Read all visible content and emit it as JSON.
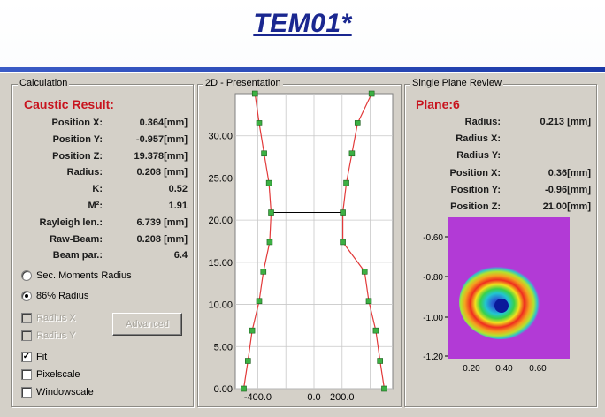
{
  "slide_title": "TEM01*",
  "calculation": {
    "group_label": "Calculation",
    "heading": "Caustic Result:",
    "rows": [
      {
        "label": "Position X:",
        "value": "0.364[mm]"
      },
      {
        "label": "Position Y:",
        "value": "-0.957[mm]"
      },
      {
        "label": "Position Z:",
        "value": "19.378[mm]"
      },
      {
        "label": "Radius:",
        "value": "0.208 [mm]"
      },
      {
        "label": "K:",
        "value": "0.52"
      },
      {
        "label": "M²:",
        "value": "1.91"
      },
      {
        "label": "Rayleigh len.:",
        "value": "6.739 [mm]"
      },
      {
        "label": "Raw-Beam:",
        "value": "0.208 [mm]"
      },
      {
        "label": "Beam par.:",
        "value": "6.4"
      }
    ],
    "radio_sec_moments": "Sec. Moments Radius",
    "radio_86": "86% Radius",
    "radius_x": "Radius X",
    "radius_y": "Radius Y",
    "advanced_label": "Advanced",
    "fit_label": "Fit",
    "pixelscale_label": "Pixelscale",
    "windowscale_label": "Windowscale",
    "selected_radio": "86% Radius",
    "fit_checked": true
  },
  "presentation": {
    "group_label": "2D - Presentation",
    "chart_data": {
      "type": "line",
      "x_ticks": [
        "-400.0",
        "0.0",
        "200.0"
      ],
      "y_ticks": [
        "0.00",
        "5.00",
        "10.00",
        "15.00",
        "20.00",
        "25.00",
        "30.00"
      ],
      "xlim": [
        -560,
        560
      ],
      "ylim": [
        0,
        35
      ],
      "grid": true,
      "series": [
        {
          "points": [
            [
              -500,
              0
            ],
            [
              -470,
              3.3
            ],
            [
              -440,
              6.9
            ],
            [
              -390,
              10.4
            ],
            [
              -360,
              13.9
            ],
            [
              -315,
              17.4
            ],
            [
              -305,
              20.9
            ],
            [
              -320,
              24.4
            ],
            [
              -355,
              27.9
            ],
            [
              -390,
              31.5
            ],
            [
              -420,
              35
            ]
          ]
        },
        {
          "points": [
            [
              500,
              0
            ],
            [
              470,
              3.3
            ],
            [
              440,
              6.9
            ],
            [
              390,
              10.4
            ],
            [
              360,
              13.9
            ],
            [
              205,
              17.4
            ],
            [
              205,
              20.9
            ],
            [
              230,
              24.4
            ],
            [
              270,
              27.9
            ],
            [
              310,
              31.5
            ],
            [
              410,
              35
            ]
          ]
        }
      ],
      "waist_z": 20.9,
      "line_color": "#e23a3a",
      "marker_color": "#3cb043"
    }
  },
  "single_plane": {
    "group_label": "Single Plane Review",
    "heading": "Plane:6",
    "rows": [
      {
        "label": "Radius:",
        "value": "0.213 [mm]"
      },
      {
        "label": "Radius X:",
        "value": ""
      },
      {
        "label": "Radius Y:",
        "value": ""
      },
      {
        "label": "Position X:",
        "value": "0.36[mm]"
      },
      {
        "label": "Position Y:",
        "value": "-0.96[mm]"
      },
      {
        "label": "Position Z:",
        "value": "21.00[mm]"
      }
    ],
    "beam_image": {
      "y_ticks": [
        "-0.60",
        "-0.80",
        "-1.00",
        "-1.20"
      ],
      "x_ticks": [
        "0.20",
        "0.40",
        "0.60"
      ],
      "background_color": "#b23ad6"
    }
  }
}
